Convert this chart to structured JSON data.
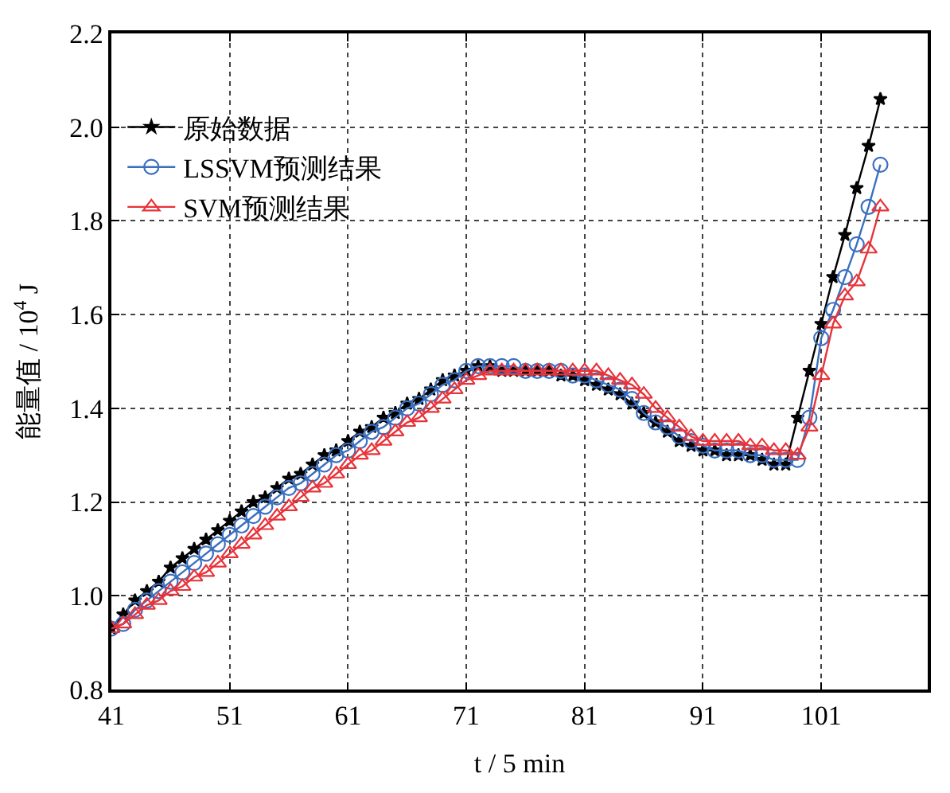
{
  "chart_data": {
    "type": "line",
    "xlabel": "t / 5 min",
    "ylabel": "能量值 / 10$^{4}$ J",
    "x": [
      41,
      42,
      43,
      44,
      45,
      46,
      47,
      48,
      49,
      50,
      51,
      52,
      53,
      54,
      55,
      56,
      57,
      58,
      59,
      60,
      61,
      62,
      63,
      64,
      65,
      66,
      67,
      68,
      69,
      70,
      71,
      72,
      73,
      74,
      75,
      76,
      77,
      78,
      79,
      80,
      81,
      82,
      83,
      84,
      85,
      86,
      87,
      88,
      89,
      90,
      91,
      92,
      93,
      94,
      95,
      96,
      97,
      98,
      99,
      100,
      101,
      102,
      103,
      104,
      105,
      106
    ],
    "series": [
      {
        "name": "原始数据",
        "color": "#000000",
        "marker": "star",
        "values": [
          0.93,
          0.96,
          0.99,
          1.01,
          1.03,
          1.06,
          1.08,
          1.1,
          1.12,
          1.14,
          1.16,
          1.18,
          1.2,
          1.21,
          1.23,
          1.25,
          1.26,
          1.28,
          1.3,
          1.31,
          1.33,
          1.35,
          1.36,
          1.38,
          1.39,
          1.41,
          1.42,
          1.44,
          1.46,
          1.47,
          1.48,
          1.49,
          1.49,
          1.48,
          1.48,
          1.48,
          1.48,
          1.48,
          1.47,
          1.47,
          1.46,
          1.45,
          1.44,
          1.43,
          1.41,
          1.39,
          1.37,
          1.35,
          1.33,
          1.32,
          1.31,
          1.31,
          1.3,
          1.3,
          1.3,
          1.29,
          1.28,
          1.28,
          1.38,
          1.48,
          1.58,
          1.68,
          1.77,
          1.87,
          1.96,
          2.06
        ]
      },
      {
        "name": "LSSVM预测结果",
        "color": "#3a6fc0",
        "marker": "circle",
        "values": [
          0.93,
          0.94,
          0.97,
          0.99,
          1.01,
          1.03,
          1.05,
          1.07,
          1.09,
          1.11,
          1.13,
          1.15,
          1.17,
          1.19,
          1.21,
          1.23,
          1.24,
          1.26,
          1.28,
          1.3,
          1.31,
          1.33,
          1.35,
          1.36,
          1.38,
          1.4,
          1.41,
          1.43,
          1.45,
          1.46,
          1.48,
          1.49,
          1.49,
          1.49,
          1.49,
          1.48,
          1.48,
          1.48,
          1.48,
          1.47,
          1.47,
          1.46,
          1.45,
          1.44,
          1.42,
          1.39,
          1.37,
          1.36,
          1.34,
          1.33,
          1.32,
          1.31,
          1.31,
          1.31,
          1.3,
          1.3,
          1.29,
          1.29,
          1.29,
          1.38,
          1.55,
          1.61,
          1.68,
          1.75,
          1.83,
          1.92
        ]
      },
      {
        "name": "SVM预测结果",
        "color": "#e8333a",
        "marker": "triangle",
        "values": [
          0.93,
          0.94,
          0.96,
          0.98,
          0.99,
          1.01,
          1.02,
          1.04,
          1.05,
          1.07,
          1.09,
          1.11,
          1.13,
          1.15,
          1.17,
          1.19,
          1.21,
          1.23,
          1.24,
          1.26,
          1.28,
          1.3,
          1.31,
          1.33,
          1.35,
          1.37,
          1.38,
          1.4,
          1.42,
          1.44,
          1.46,
          1.47,
          1.48,
          1.48,
          1.48,
          1.48,
          1.48,
          1.48,
          1.48,
          1.48,
          1.48,
          1.48,
          1.47,
          1.46,
          1.45,
          1.43,
          1.4,
          1.38,
          1.36,
          1.34,
          1.33,
          1.33,
          1.33,
          1.33,
          1.32,
          1.32,
          1.31,
          1.31,
          1.3,
          1.36,
          1.47,
          1.58,
          1.64,
          1.67,
          1.74,
          1.83
        ]
      }
    ],
    "xlim": [
      41,
      110
    ],
    "xticks": [
      41,
      51,
      61,
      71,
      81,
      91,
      101
    ],
    "ylim": [
      0.8,
      2.2
    ],
    "yticks": [
      0.8,
      {
        "value": 1.0,
        "label": "1.0"
      },
      1.2,
      1.4,
      1.6,
      1.8,
      {
        "value": 2.0,
        "label": "2.0"
      },
      2.2
    ],
    "grid": true,
    "legend": "top left",
    "line_style": "solid"
  }
}
